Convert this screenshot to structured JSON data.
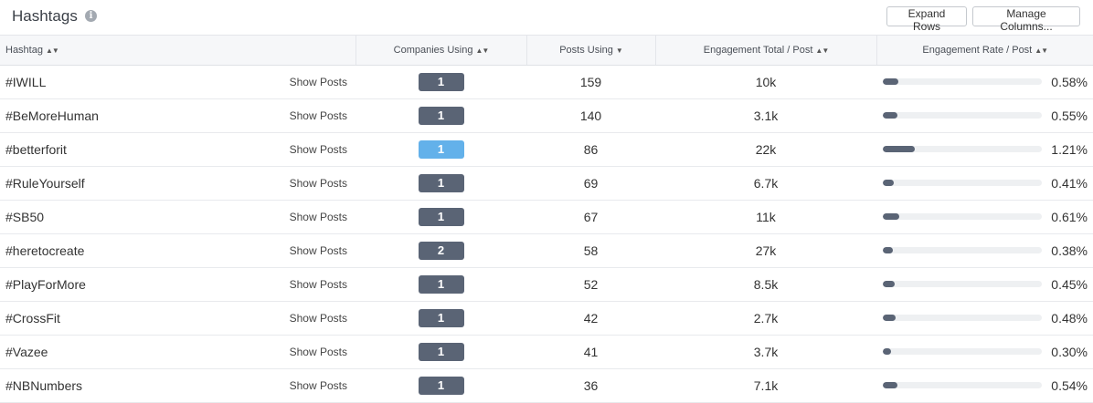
{
  "panel": {
    "title": "Hashtags",
    "info_icon": "info-icon",
    "expand_rows_label": "Expand Rows",
    "manage_columns_label": "Manage Columns..."
  },
  "columns": {
    "hashtag": "Hashtag",
    "companies_using": "Companies Using",
    "posts_using": "Posts Using",
    "engagement_total": "Engagement Total / Post",
    "engagement_rate": "Engagement Rate / Post"
  },
  "sort_icons": {
    "unsorted": "sort-both-icon",
    "sorted_desc": "sort-desc-icon"
  },
  "colors": {
    "badge": "#5a6475",
    "badge_active": "#63b1ea",
    "bar_fill": "#5a6475",
    "bar_track": "#eef0f2"
  },
  "show_posts_label": "Show Posts",
  "rows": [
    {
      "hashtag": "#IWILL",
      "companies": "1",
      "posts": "159",
      "engagement_total": "10k",
      "rate_text": "0.58%",
      "rate_value": 0.58,
      "active": false
    },
    {
      "hashtag": "#BeMoreHuman",
      "companies": "1",
      "posts": "140",
      "engagement_total": "3.1k",
      "rate_text": "0.55%",
      "rate_value": 0.55,
      "active": false
    },
    {
      "hashtag": "#betterforit",
      "companies": "1",
      "posts": "86",
      "engagement_total": "22k",
      "rate_text": "1.21%",
      "rate_value": 1.21,
      "active": true
    },
    {
      "hashtag": "#RuleYourself",
      "companies": "1",
      "posts": "69",
      "engagement_total": "6.7k",
      "rate_text": "0.41%",
      "rate_value": 0.41,
      "active": false
    },
    {
      "hashtag": "#SB50",
      "companies": "1",
      "posts": "67",
      "engagement_total": "11k",
      "rate_text": "0.61%",
      "rate_value": 0.61,
      "active": false
    },
    {
      "hashtag": "#heretocreate",
      "companies": "2",
      "posts": "58",
      "engagement_total": "27k",
      "rate_text": "0.38%",
      "rate_value": 0.38,
      "active": false
    },
    {
      "hashtag": "#PlayForMore",
      "companies": "1",
      "posts": "52",
      "engagement_total": "8.5k",
      "rate_text": "0.45%",
      "rate_value": 0.45,
      "active": false
    },
    {
      "hashtag": "#CrossFit",
      "companies": "1",
      "posts": "42",
      "engagement_total": "2.7k",
      "rate_text": "0.48%",
      "rate_value": 0.48,
      "active": false
    },
    {
      "hashtag": "#Vazee",
      "companies": "1",
      "posts": "41",
      "engagement_total": "3.7k",
      "rate_text": "0.30%",
      "rate_value": 0.3,
      "active": false
    },
    {
      "hashtag": "#NBNumbers",
      "companies": "1",
      "posts": "36",
      "engagement_total": "7.1k",
      "rate_text": "0.54%",
      "rate_value": 0.54,
      "active": false
    }
  ]
}
